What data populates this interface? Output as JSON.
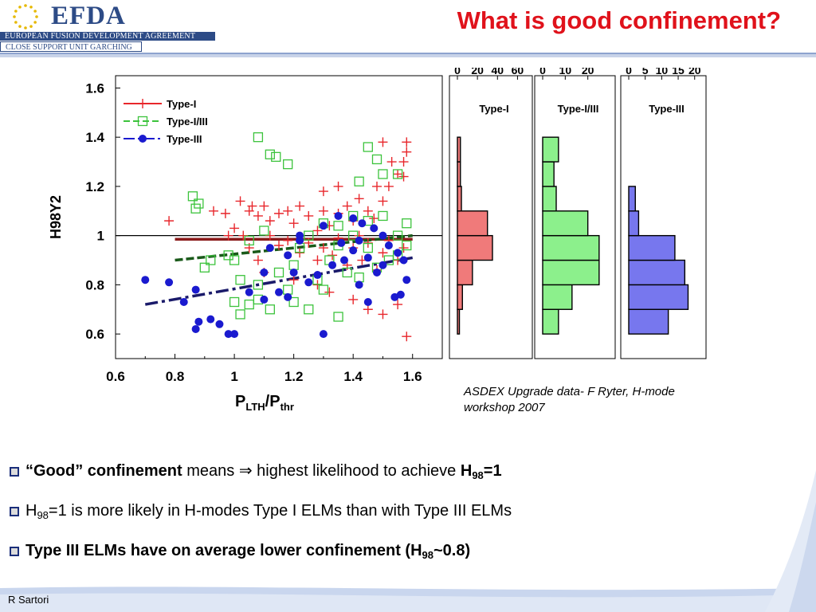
{
  "header": {
    "logo_text": "EFDA",
    "org_name": "EUROPEAN FUSION DEVELOPMENT AGREEMENT",
    "unit_name": "CLOSE SUPPORT UNIT GARCHING",
    "brand_color": "#2d4b86"
  },
  "slide": {
    "title": "What is good confinement?",
    "title_color": "#e0121b",
    "caption_line1": "ASDEX Upgrade data- F Ryter, H-mode",
    "caption_line2": "workshop 2007",
    "bullets": [
      {
        "part1": "“Good” confinement",
        "part2": " means  ⇒  highest likelihood to achieve ",
        "part3": "H",
        "sub": "98",
        "part4": "=1"
      },
      {
        "part1": "H",
        "sub": "98",
        "part2": "=1 is more likely in H-modes Type I ELMs than with Type III ELMs"
      },
      {
        "part1": "Type III ELMs have on average lower confinement (H",
        "sub": "98",
        "part2": "~0.8)"
      }
    ],
    "author": "R Sartori"
  },
  "chart_data": [
    {
      "type": "scatter",
      "xlabel_main": "P",
      "xlabel_sub1": "LTH",
      "xlabel_slash": "/P",
      "xlabel_sub2": "thr",
      "ylabel": "H98Y2",
      "xlim": [
        0.6,
        1.7
      ],
      "ylim": [
        0.5,
        1.65
      ],
      "xticks": [
        "0.6",
        "0.8",
        "1",
        "1.2",
        "1.4",
        "1.6"
      ],
      "yticks": [
        "0.6",
        "0.8",
        "1",
        "1.2",
        "1.4",
        "1.6"
      ],
      "reference_line_y": 1.0,
      "legend_position": "top-left",
      "series": [
        {
          "name": "Type-I",
          "marker": "plus",
          "color": "#e8262b",
          "points": [
            [
              0.78,
              1.06
            ],
            [
              0.93,
              1.1
            ],
            [
              0.97,
              1.09
            ],
            [
              1.02,
              1.14
            ],
            [
              1.05,
              1.1
            ],
            [
              1.06,
              1.12
            ],
            [
              1.08,
              1.08
            ],
            [
              1.1,
              1.12
            ],
            [
              1.12,
              1.06
            ],
            [
              1.15,
              1.09
            ],
            [
              1.18,
              1.1
            ],
            [
              1.2,
              1.05
            ],
            [
              1.22,
              1.12
            ],
            [
              1.25,
              1.08
            ],
            [
              1.28,
              1.02
            ],
            [
              1.3,
              1.1
            ],
            [
              1.32,
              1.04
            ],
            [
              1.35,
              1.09
            ],
            [
              1.38,
              1.12
            ],
            [
              1.4,
              1.06
            ],
            [
              1.42,
              1.0
            ],
            [
              1.45,
              1.1
            ],
            [
              1.47,
              1.07
            ],
            [
              1.5,
              1.14
            ],
            [
              1.52,
              1.2
            ],
            [
              1.55,
              1.25
            ],
            [
              1.57,
              1.3
            ],
            [
              1.58,
              1.34
            ],
            [
              1.5,
              1.38
            ],
            [
              1.58,
              1.38
            ],
            [
              1.53,
              1.3
            ],
            [
              1.57,
              1.24
            ],
            [
              1.12,
              1.0
            ],
            [
              1.15,
              0.96
            ],
            [
              1.18,
              0.98
            ],
            [
              1.22,
              0.93
            ],
            [
              1.25,
              0.97
            ],
            [
              1.28,
              0.9
            ],
            [
              1.3,
              0.95
            ],
            [
              1.33,
              0.92
            ],
            [
              1.35,
              0.99
            ],
            [
              1.38,
              0.88
            ],
            [
              1.4,
              0.95
            ],
            [
              1.43,
              0.9
            ],
            [
              1.45,
              0.97
            ],
            [
              1.48,
              0.86
            ],
            [
              1.5,
              0.93
            ],
            [
              1.52,
              0.98
            ],
            [
              1.55,
              0.9
            ],
            [
              1.57,
              0.95
            ],
            [
              1.05,
              0.95
            ],
            [
              1.08,
              0.9
            ],
            [
              1.1,
              0.85
            ],
            [
              1.2,
              0.82
            ],
            [
              1.28,
              0.8
            ],
            [
              1.32,
              0.77
            ],
            [
              1.4,
              0.74
            ],
            [
              1.45,
              0.7
            ],
            [
              1.5,
              0.68
            ],
            [
              1.55,
              0.72
            ],
            [
              1.58,
              0.59
            ],
            [
              1.3,
              1.18
            ],
            [
              1.35,
              1.2
            ],
            [
              1.42,
              1.15
            ],
            [
              1.48,
              1.2
            ],
            [
              1.0,
              1.03
            ],
            [
              0.98,
              1.0
            ],
            [
              1.03,
              1.0
            ]
          ]
        },
        {
          "name": "Type-I/III",
          "marker": "square",
          "color": "#3cc33c",
          "points": [
            [
              0.86,
              1.16
            ],
            [
              0.87,
              1.11
            ],
            [
              0.88,
              1.13
            ],
            [
              0.92,
              0.9
            ],
            [
              0.9,
              0.87
            ],
            [
              0.98,
              0.92
            ],
            [
              1.0,
              0.9
            ],
            [
              1.08,
              1.4
            ],
            [
              1.12,
              1.33
            ],
            [
              1.14,
              1.32
            ],
            [
              1.18,
              1.29
            ],
            [
              1.45,
              1.36
            ],
            [
              1.48,
              1.31
            ],
            [
              1.42,
              1.22
            ],
            [
              1.5,
              1.25
            ],
            [
              1.55,
              1.25
            ],
            [
              1.0,
              0.73
            ],
            [
              1.02,
              0.68
            ],
            [
              1.05,
              0.72
            ],
            [
              1.08,
              0.74
            ],
            [
              1.12,
              0.7
            ],
            [
              1.2,
              0.73
            ],
            [
              1.25,
              0.7
            ],
            [
              1.3,
              0.78
            ],
            [
              1.35,
              0.67
            ],
            [
              1.28,
              0.82
            ],
            [
              1.15,
              0.85
            ],
            [
              1.2,
              0.88
            ],
            [
              1.32,
              0.9
            ],
            [
              1.38,
              0.85
            ],
            [
              1.42,
              0.83
            ],
            [
              1.48,
              0.87
            ],
            [
              1.52,
              0.9
            ],
            [
              1.55,
              0.92
            ],
            [
              1.58,
              0.96
            ],
            [
              1.45,
              1.06
            ],
            [
              1.4,
              1.08
            ],
            [
              1.35,
              1.04
            ],
            [
              1.5,
              1.08
            ],
            [
              1.1,
              1.02
            ],
            [
              1.05,
              0.98
            ],
            [
              1.22,
              0.95
            ],
            [
              1.25,
              1.0
            ],
            [
              1.3,
              1.05
            ],
            [
              1.35,
              0.96
            ],
            [
              1.4,
              1.0
            ],
            [
              1.45,
              0.95
            ],
            [
              1.55,
              1.0
            ],
            [
              1.58,
              1.05
            ],
            [
              1.02,
              0.82
            ],
            [
              1.08,
              0.8
            ],
            [
              1.18,
              0.78
            ]
          ]
        },
        {
          "name": "Type-III",
          "marker": "dot",
          "color": "#1a1acf",
          "points": [
            [
              0.7,
              0.82
            ],
            [
              0.78,
              0.81
            ],
            [
              0.83,
              0.73
            ],
            [
              0.87,
              0.78
            ],
            [
              0.88,
              0.65
            ],
            [
              0.92,
              0.66
            ],
            [
              0.95,
              0.64
            ],
            [
              0.98,
              0.6
            ],
            [
              1.0,
              0.6
            ],
            [
              0.87,
              0.62
            ],
            [
              1.05,
              0.77
            ],
            [
              1.1,
              0.74
            ],
            [
              1.15,
              0.77
            ],
            [
              1.18,
              0.75
            ],
            [
              1.2,
              0.85
            ],
            [
              1.25,
              0.81
            ],
            [
              1.28,
              0.84
            ],
            [
              1.3,
              0.6
            ],
            [
              1.33,
              0.88
            ],
            [
              1.37,
              0.9
            ],
            [
              1.4,
              0.94
            ],
            [
              1.42,
              0.98
            ],
            [
              1.45,
              0.91
            ],
            [
              1.48,
              0.85
            ],
            [
              1.5,
              0.88
            ],
            [
              1.52,
              0.96
            ],
            [
              1.55,
              0.93
            ],
            [
              1.57,
              0.9
            ],
            [
              1.56,
              0.76
            ],
            [
              1.58,
              0.82
            ],
            [
              1.54,
              0.75
            ],
            [
              1.12,
              0.95
            ],
            [
              1.18,
              0.92
            ],
            [
              1.22,
              0.98
            ],
            [
              1.3,
              1.04
            ],
            [
              1.35,
              1.08
            ],
            [
              1.43,
              1.05
            ],
            [
              1.47,
              1.03
            ],
            [
              1.5,
              1.0
            ],
            [
              1.4,
              1.07
            ],
            [
              1.22,
              1.0
            ],
            [
              1.36,
              0.97
            ],
            [
              1.45,
              0.73
            ],
            [
              1.42,
              0.8
            ],
            [
              1.1,
              0.85
            ]
          ]
        }
      ],
      "fit_lines": [
        {
          "series": "Type-I",
          "color": "#8a1a1a",
          "x": [
            0.8,
            1.6
          ],
          "y": [
            0.985,
            0.985
          ]
        },
        {
          "series": "Type-I/III",
          "color": "#1a5a1a",
          "x": [
            0.8,
            1.6
          ],
          "y": [
            0.9,
            1.0
          ]
        },
        {
          "series": "Type-III",
          "color": "#1a1a6a",
          "x": [
            0.7,
            1.6
          ],
          "y": [
            0.72,
            0.91
          ]
        }
      ]
    },
    {
      "type": "bar",
      "orientation": "horizontal",
      "title": "Type-I",
      "color": "#f07a7a",
      "xticks": [
        "0",
        "20",
        "40",
        "60"
      ],
      "xlim": [
        0,
        70
      ],
      "bin_edges": [
        0.6,
        0.7,
        0.8,
        0.9,
        1.0,
        1.1,
        1.2,
        1.3,
        1.4
      ],
      "values": [
        2,
        5,
        15,
        35,
        30,
        4,
        3,
        3
      ]
    },
    {
      "type": "bar",
      "orientation": "horizontal",
      "title": "Type-I/III",
      "color": "#8cf08c",
      "xticks": [
        "0",
        "10",
        "20"
      ],
      "xlim": [
        0,
        30
      ],
      "bin_edges": [
        0.6,
        0.7,
        0.8,
        0.9,
        1.0,
        1.1,
        1.2,
        1.3,
        1.4
      ],
      "values": [
        7,
        13,
        25,
        25,
        20,
        6,
        5,
        7
      ]
    },
    {
      "type": "bar",
      "orientation": "horizontal",
      "title": "Type-III",
      "color": "#7777ee",
      "xticks": [
        "0",
        "5",
        "10",
        "15",
        "20"
      ],
      "xlim": [
        0,
        22
      ],
      "bin_edges": [
        0.6,
        0.7,
        0.8,
        0.9,
        1.0,
        1.1,
        1.2
      ],
      "values": [
        12,
        18,
        17,
        14,
        3,
        2
      ]
    }
  ]
}
